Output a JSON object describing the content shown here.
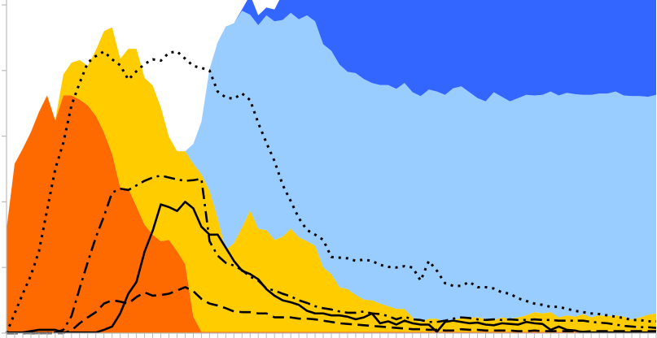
{
  "chart_data": {
    "type": "area",
    "x": [
      0,
      1,
      2,
      3,
      4,
      5,
      6,
      7,
      8,
      9,
      10,
      11,
      12,
      13,
      14,
      15,
      16,
      17,
      18,
      19,
      20,
      21,
      22,
      23,
      24,
      25,
      26,
      27,
      28,
      29,
      30,
      31,
      32,
      33,
      34,
      35,
      36,
      37,
      38,
      39,
      40,
      41,
      42,
      43,
      44,
      45,
      46,
      47,
      48,
      49,
      50,
      51,
      52,
      53,
      54,
      55,
      56,
      57,
      58,
      59,
      60,
      61,
      62,
      63,
      64,
      65,
      66,
      67,
      68,
      69,
      70,
      71,
      72,
      73,
      74,
      75,
      76,
      77,
      78,
      79,
      80
    ],
    "ylim": [
      0,
      500
    ],
    "yticks": [
      0,
      100,
      200,
      300,
      400,
      500
    ],
    "grid": false,
    "legend": "none",
    "colors": {
      "orange": "#ff6a00",
      "yellow": "#ffcc00",
      "light_blue": "#99ccff",
      "blue": "#3366ff",
      "line": "#000000",
      "axis": "#bbbbbb"
    },
    "stack": [
      {
        "color": "orange",
        "values": [
          158,
          258,
          281,
          306,
          337,
          362,
          324,
          362,
          362,
          356,
          347,
          331,
          306,
          273,
          222,
          220,
          193,
          165,
          150,
          140,
          142,
          125,
          105,
          25,
          2,
          2,
          2,
          2,
          2,
          2,
          2,
          2,
          2,
          2,
          2,
          2,
          2,
          2,
          2,
          2,
          2,
          2,
          2,
          2,
          2,
          2,
          2,
          2,
          2,
          2,
          2,
          2,
          2,
          2,
          2,
          2,
          2,
          2,
          2,
          2,
          2,
          2,
          2,
          2,
          2,
          2,
          2,
          2,
          2,
          2,
          2,
          2,
          2,
          2,
          2,
          2,
          2,
          2,
          2,
          2,
          2
        ]
      },
      {
        "color": "yellow",
        "values": [
          0,
          0,
          0,
          0,
          0,
          0,
          0,
          32,
          50,
          60,
          60,
          100,
          154,
          193,
          196,
          213,
          240,
          224,
          227,
          204,
          157,
          152,
          172,
          233,
          240,
          215,
          173,
          125,
          135,
          159,
          185,
          157,
          155,
          140,
          145,
          157,
          144,
          138,
          131,
          98,
          88,
          68,
          65,
          56,
          49,
          48,
          43,
          39,
          35,
          35,
          22,
          15,
          20,
          20,
          14,
          18,
          21,
          22,
          22,
          20,
          18,
          22,
          20,
          22,
          25,
          30,
          28,
          30,
          22,
          25,
          23,
          27,
          22,
          25,
          24,
          25,
          23,
          19,
          22,
          26,
          28
        ]
      },
      {
        "color": "light_blue",
        "values": [
          0,
          0,
          0,
          0,
          0,
          0,
          0,
          0,
          0,
          0,
          0,
          0,
          0,
          0,
          0,
          0,
          0,
          0,
          0,
          0,
          0,
          0,
          0,
          30,
          80,
          185,
          268,
          340,
          335,
          330,
          298,
          310,
          327,
          333,
          330,
          329,
          332,
          344,
          342,
          340,
          340,
          339,
          331,
          338,
          336,
          331,
          333,
          337,
          335,
          344,
          343,
          344,
          349,
          346,
          347,
          353,
          353,
          343,
          334,
          331,
          347,
          336,
          331,
          334,
          336,
          330,
          333,
          336,
          338,
          339,
          339,
          334,
          339,
          338,
          339,
          341,
          337,
          340,
          337,
          332,
          333
        ]
      },
      {
        "color": "blue",
        "values": [
          0,
          0,
          0,
          0,
          0,
          0,
          0,
          0,
          0,
          0,
          0,
          0,
          0,
          0,
          0,
          0,
          0,
          0,
          0,
          0,
          0,
          0,
          0,
          0,
          0,
          0,
          0,
          0,
          0,
          2,
          30,
          15,
          12,
          18,
          40,
          70,
          80,
          92,
          110,
          131,
          130,
          140,
          131,
          140,
          147,
          160,
          165,
          162,
          160,
          165,
          168,
          165,
          169,
          172,
          173,
          170,
          170,
          180,
          186,
          185,
          170,
          178,
          181,
          182,
          186,
          190,
          188,
          192,
          188,
          190,
          190,
          190,
          191,
          190,
          186,
          186,
          190,
          187,
          190,
          190,
          193
        ]
      }
    ],
    "lines": [
      {
        "style": "solid",
        "values": [
          1,
          1,
          1,
          3,
          5,
          5,
          5,
          1,
          1,
          1,
          1,
          1,
          5,
          10,
          30,
          60,
          78,
          124,
          156,
          196,
          192,
          186,
          200,
          190,
          162,
          150,
          150,
          130,
          110,
          95,
          90,
          82,
          67,
          57,
          50,
          47,
          43,
          34,
          30,
          30,
          27,
          27,
          25,
          21,
          24,
          30,
          15,
          18,
          13,
          19,
          15,
          13,
          13,
          2,
          17,
          19,
          17,
          15,
          16,
          13,
          12,
          15,
          14,
          13,
          17,
          15,
          14,
          5,
          10,
          5,
          4,
          1,
          1,
          1,
          1,
          1,
          1,
          1,
          1,
          1,
          1
        ]
      },
      {
        "style": "dashdot",
        "values": [
          0,
          0,
          0,
          0,
          0,
          0,
          1,
          5,
          26,
          68,
          108,
          146,
          178,
          214,
          220,
          218,
          225,
          232,
          237,
          240,
          237,
          234,
          232,
          233,
          235,
          140,
          118,
          107,
          103,
          96,
          86,
          80,
          68,
          65,
          60,
          56,
          50,
          46,
          41,
          38,
          36,
          33,
          31,
          31,
          33,
          30,
          29,
          26,
          21,
          25,
          21,
          20,
          17,
          17,
          19,
          22,
          24,
          23,
          21,
          20,
          21,
          20,
          21,
          20,
          20,
          21,
          20,
          20,
          19,
          19,
          19,
          19,
          17,
          16,
          15,
          13,
          11,
          10,
          9,
          9,
          8
        ]
      },
      {
        "style": "dashed",
        "values": [
          0,
          0,
          0,
          0,
          0,
          0,
          0,
          0,
          4,
          15,
          24,
          32,
          45,
          50,
          48,
          45,
          55,
          62,
          57,
          58,
          60,
          65,
          70,
          64,
          52,
          45,
          42,
          38,
          33,
          32,
          32,
          30,
          30,
          24,
          24,
          24,
          22,
          22,
          21,
          19,
          17,
          15,
          14,
          13,
          12,
          11,
          10,
          9,
          8,
          7,
          6,
          6,
          5,
          5,
          4,
          4,
          6,
          5,
          5,
          4,
          4,
          4,
          4,
          3,
          3,
          4,
          3,
          3,
          3,
          3,
          3,
          2,
          3,
          3,
          3,
          3,
          3,
          3,
          3,
          3,
          3
        ]
      },
      {
        "style": "dotted",
        "values": [
          0,
          30,
          60,
          88,
          125,
          188,
          250,
          290,
          347,
          381,
          412,
          422,
          429,
          417,
          408,
          386,
          399,
          410,
          417,
          415,
          427,
          429,
          418,
          407,
          404,
          400,
          368,
          359,
          357,
          365,
          355,
          320,
          290,
          262,
          226,
          201,
          175,
          157,
          150,
          142,
          116,
          115,
          114,
          110,
          112,
          110,
          104,
          101,
          100,
          102,
          100,
          80,
          110,
          95,
          76,
          72,
          72,
          78,
          70,
          70,
          68,
          62,
          60,
          53,
          49,
          45,
          43,
          40,
          40,
          37,
          34,
          32,
          30,
          29,
          27,
          25,
          23,
          20,
          20,
          18,
          18
        ]
      }
    ]
  }
}
